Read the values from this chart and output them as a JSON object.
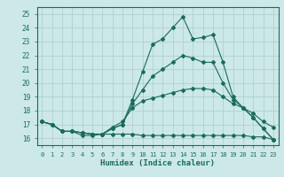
{
  "title": "",
  "xlabel": "Humidex (Indice chaleur)",
  "xlim": [
    -0.5,
    23.5
  ],
  "ylim": [
    15.5,
    25.5
  ],
  "yticks": [
    16,
    17,
    18,
    19,
    20,
    21,
    22,
    23,
    24,
    25
  ],
  "xticks": [
    0,
    1,
    2,
    3,
    4,
    5,
    6,
    7,
    8,
    9,
    10,
    11,
    12,
    13,
    14,
    15,
    16,
    17,
    18,
    19,
    20,
    21,
    22,
    23
  ],
  "background_color": "#cce8e8",
  "grid_color": "#aacccc",
  "line_color": "#1a6b5a",
  "line_series": [
    [
      17.2,
      17.0,
      16.5,
      16.5,
      16.4,
      16.3,
      16.3,
      16.7,
      17.0,
      18.8,
      20.8,
      22.8,
      23.2,
      24.0,
      24.8,
      23.2,
      23.3,
      23.5,
      21.5,
      19.0,
      18.2,
      17.5,
      16.7,
      15.9
    ],
    [
      17.2,
      17.0,
      16.5,
      16.5,
      16.2,
      16.2,
      16.3,
      16.3,
      16.3,
      16.3,
      16.2,
      16.2,
      16.2,
      16.2,
      16.2,
      16.2,
      16.2,
      16.2,
      16.2,
      16.2,
      16.2,
      16.1,
      16.1,
      15.9
    ],
    [
      17.2,
      17.0,
      16.5,
      16.5,
      16.4,
      16.3,
      16.3,
      16.8,
      17.2,
      18.2,
      18.7,
      18.9,
      19.1,
      19.3,
      19.5,
      19.6,
      19.6,
      19.5,
      19.0,
      18.5,
      18.2,
      17.8,
      17.2,
      16.8
    ],
    [
      17.2,
      17.0,
      16.5,
      16.5,
      16.4,
      16.3,
      16.3,
      16.7,
      17.0,
      18.5,
      19.5,
      20.5,
      21.0,
      21.5,
      22.0,
      21.8,
      21.5,
      21.5,
      20.0,
      18.8,
      18.2,
      17.5,
      16.7,
      15.9
    ]
  ]
}
